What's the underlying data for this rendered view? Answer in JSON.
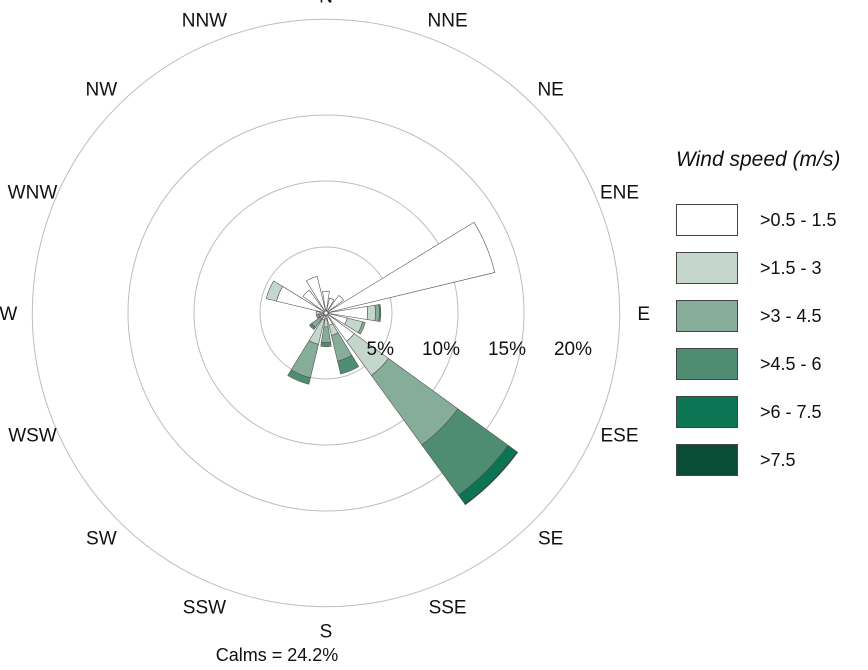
{
  "chart_data": {
    "type": "windrose",
    "title": "",
    "legend_title": "Wind speed (m/s)",
    "legend_position": "right",
    "directions": [
      "N",
      "NNE",
      "NE",
      "ENE",
      "E",
      "ESE",
      "SE",
      "SSE",
      "S",
      "SSW",
      "SW",
      "WSW",
      "W",
      "WNW",
      "NW",
      "NNW"
    ],
    "radial_ticks": [
      "5%",
      "10%",
      "15%",
      "20%"
    ],
    "rmax": 22,
    "grid": true,
    "series": [
      {
        "name": ">0.5 - 1.5",
        "color": "#ffffff",
        "values": [
          1.5,
          1.0,
          1.5,
          13.0,
          3.0,
          1.5,
          2.5,
          0.8,
          0.3,
          0.4,
          0.1,
          0.2,
          0.3,
          3.7,
          2.0,
          2.7
        ]
      },
      {
        "name": ">1.5 - 3",
        "color": "#c5d7cd",
        "values": [
          0.0,
          0.0,
          0.0,
          0.0,
          0.6,
          1.2,
          3.2,
          0.8,
          0.6,
          1.9,
          0.3,
          0.2,
          0.3,
          0.8,
          0.0,
          0.0
        ]
      },
      {
        "name": ">3 - 4.5",
        "color": "#86ac9a",
        "values": [
          0.0,
          0.0,
          0.0,
          0.0,
          0.3,
          0.2,
          6.5,
          2.0,
          1.2,
          2.6,
          0.8,
          0.2,
          0.0,
          0.0,
          0.0,
          0.0
        ]
      },
      {
        "name": ">4.5 - 6",
        "color": "#4e8d72",
        "values": [
          0.0,
          0.0,
          0.0,
          0.0,
          0.1,
          0.0,
          4.7,
          1.0,
          0.3,
          0.5,
          0.2,
          0.0,
          0.0,
          0.0,
          0.0,
          0.0
        ]
      },
      {
        "name": ">6 - 7.5",
        "color": "#0b7452",
        "values": [
          0.0,
          0.0,
          0.0,
          0.0,
          0.0,
          0.0,
          0.8,
          0.0,
          0.0,
          0.0,
          0.0,
          0.0,
          0.0,
          0.0,
          0.0,
          0.0
        ]
      },
      {
        "name": ">7.5",
        "color": "#0a4d37",
        "values": [
          0.0,
          0.0,
          0.0,
          0.0,
          0.0,
          0.0,
          0.1,
          0.0,
          0.0,
          0.0,
          0.0,
          0.0,
          0.0,
          0.0,
          0.0,
          0.0
        ]
      }
    ],
    "calms_label": "Calms = 24.2%"
  }
}
